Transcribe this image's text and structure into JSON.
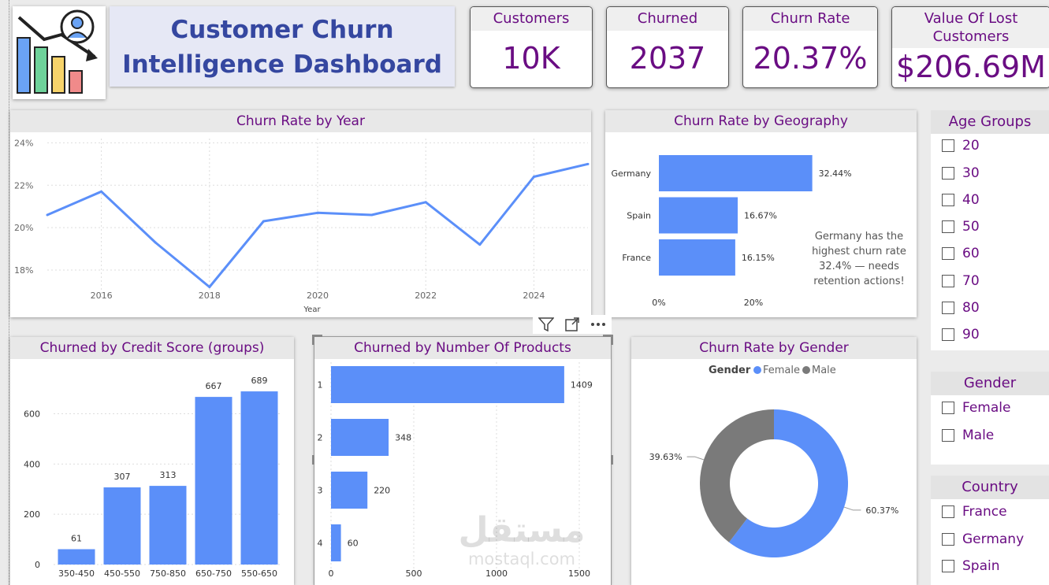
{
  "header": {
    "title_line1": "Customer Churn",
    "title_line2": "Intelligence Dashboard"
  },
  "kpis": [
    {
      "label": "Customers",
      "value": "10K"
    },
    {
      "label": "Churned",
      "value": "2037"
    },
    {
      "label": "Churn Rate",
      "value": "20.37%"
    },
    {
      "label_line1": "Value Of Lost",
      "label_line2": "Customers",
      "value": "$206.69M"
    }
  ],
  "toolbar": {
    "icons": [
      "filter-icon",
      "focus-mode-icon",
      "more-options-icon"
    ]
  },
  "year_chart": {
    "title": "Churn Rate by Year",
    "chart_data": {
      "type": "line",
      "x": [
        2015,
        2016,
        2017,
        2018,
        2019,
        2020,
        2021,
        2022,
        2023,
        2024,
        2025
      ],
      "series": [
        {
          "values": [
            20.6,
            21.7,
            19.3,
            17.2,
            20.3,
            20.7,
            20.6,
            21.2,
            19.2,
            22.4,
            23.0
          ]
        }
      ],
      "xlabel": "Year",
      "ylabel": "",
      "xticks": [
        "2016",
        "2018",
        "2020",
        "2022",
        "2024"
      ],
      "yticks": [
        "18%",
        "20%",
        "22%",
        "24%"
      ],
      "ylim": [
        16.7,
        24.2
      ],
      "grid": true,
      "color": "#5b8ff9"
    }
  },
  "geo_chart": {
    "title": "Churn Rate by Geography",
    "chart_data": {
      "type": "bar",
      "orientation": "horizontal",
      "categories": [
        "Germany",
        "Spain",
        "France"
      ],
      "values": [
        32.44,
        16.67,
        16.15
      ],
      "data_labels": [
        "32.44%",
        "16.67%",
        "16.15%"
      ],
      "xticks": [
        "0%",
        "20%"
      ],
      "xlim": [
        0,
        40
      ],
      "color": "#5b8ff9"
    },
    "annotation": [
      "Germany has the",
      "highest churn rate",
      "32.4% — needs",
      "retention actions!"
    ]
  },
  "credit_chart": {
    "title": "Churned by Credit Score (groups)",
    "chart_data": {
      "type": "bar",
      "categories": [
        "350-450",
        "450-550",
        "750-850",
        "650-750",
        "550-650"
      ],
      "values": [
        61,
        307,
        313,
        667,
        689
      ],
      "yticks": [
        "0",
        "200",
        "400",
        "600"
      ],
      "ylim": [
        0,
        730
      ],
      "color": "#5b8ff9"
    }
  },
  "products_chart": {
    "title": "Churned by Number Of Products",
    "chart_data": {
      "type": "bar",
      "orientation": "horizontal",
      "categories": [
        "1",
        "2",
        "3",
        "4"
      ],
      "values": [
        1409,
        348,
        220,
        60
      ],
      "xticks": [
        "0",
        "500",
        "1000",
        "1500"
      ],
      "xlim": [
        0,
        1500
      ],
      "color": "#5b8ff9"
    }
  },
  "gender_chart": {
    "title": "Churn Rate by Gender",
    "legend_title": "Gender",
    "chart_data": {
      "type": "pie",
      "donut": true,
      "categories": [
        "Female",
        "Male"
      ],
      "values": [
        60.37,
        39.63
      ],
      "data_labels": [
        "60.37%",
        "39.63%"
      ],
      "colors": [
        "#5b8ff9",
        "#7a7a7a"
      ],
      "legend_position": "top"
    }
  },
  "slicers": {
    "age": {
      "title": "Age Groups",
      "options": [
        "20",
        "30",
        "40",
        "50",
        "60",
        "70",
        "80",
        "90"
      ]
    },
    "gender": {
      "title": "Gender",
      "options": [
        "Female",
        "Male"
      ]
    },
    "country": {
      "title": "Country",
      "options": [
        "France",
        "Germany",
        "Spain"
      ]
    }
  },
  "watermark": {
    "arabic": "مستقل",
    "latin": "mostaql.com"
  }
}
